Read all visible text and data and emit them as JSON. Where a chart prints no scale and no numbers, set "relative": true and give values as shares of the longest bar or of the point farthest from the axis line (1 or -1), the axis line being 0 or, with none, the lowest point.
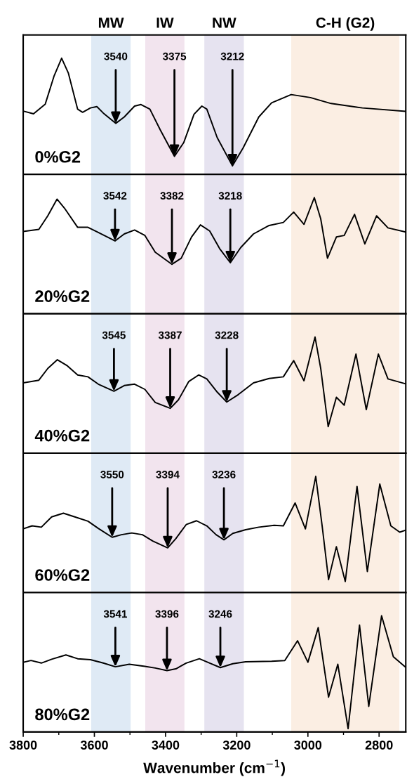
{
  "chart_data": [
    {
      "type": "line",
      "title": "0%G2",
      "relative": true,
      "tick_labels": false,
      "xlim": [
        3800,
        2725
      ],
      "color": "#000000",
      "x": [
        3800,
        3771,
        3738,
        3713,
        3692,
        3673,
        3647,
        3633,
        3611,
        3593,
        3575,
        3540,
        3516,
        3487,
        3469,
        3444,
        3415,
        3375,
        3349,
        3320,
        3298,
        3284,
        3255,
        3212,
        3182,
        3138,
        3102,
        3047,
        2993,
        2935,
        2847,
        2727
      ],
      "values": [
        0.545,
        0.521,
        0.605,
        0.849,
        1,
        0.871,
        0.561,
        0.534,
        0.572,
        0.583,
        0.528,
        0.439,
        0.494,
        0.588,
        0.601,
        0.561,
        0.384,
        0.155,
        0.273,
        0.517,
        0.588,
        0.561,
        0.317,
        0.073,
        0.228,
        0.494,
        0.616,
        0.687,
        0.661,
        0.61,
        0.572,
        0.543
      ],
      "bands": [
        {
          "axis": "x",
          "from": 3609,
          "to": 3498,
          "label": "MW",
          "color": "#dfeaf5"
        },
        {
          "axis": "x",
          "from": 3457,
          "to": 3347,
          "label": "IW",
          "color": "#f2e4ee"
        },
        {
          "axis": "x",
          "from": 3291,
          "to": 3180,
          "label": "NW",
          "color": "#e6e3f0"
        },
        {
          "axis": "x",
          "from": 3047,
          "to": 2743,
          "label": "C-H (G2)",
          "color": "#fbeee3"
        }
      ],
      "annotations": [
        {
          "text": "3540",
          "x": 3540,
          "y": 0.439
        },
        {
          "text": "3375",
          "x": 3375,
          "y": 0.155
        },
        {
          "text": "3212",
          "x": 3212,
          "y": 0.073
        }
      ]
    },
    {
      "type": "line",
      "title": "20%G2",
      "relative": true,
      "tick_labels": false,
      "xlim": [
        3800,
        2725
      ],
      "color": "#000000",
      "x": [
        3800,
        3756,
        3731,
        3705,
        3684,
        3647,
        3618,
        3589,
        3542,
        3516,
        3487,
        3458,
        3429,
        3382,
        3356,
        3327,
        3302,
        3276,
        3247,
        3218,
        3189,
        3153,
        3109,
        3069,
        3040,
        3011,
        2982,
        2964,
        2945,
        2920,
        2898,
        2869,
        2840,
        2807,
        2775,
        2727
      ],
      "values": [
        0.708,
        0.726,
        0.843,
        0.987,
        0.909,
        0.744,
        0.744,
        0.7,
        0.627,
        0.687,
        0.721,
        0.674,
        0.53,
        0.426,
        0.478,
        0.661,
        0.765,
        0.713,
        0.556,
        0.439,
        0.569,
        0.687,
        0.76,
        0.786,
        0.875,
        0.77,
        1,
        0.817,
        0.478,
        0.661,
        0.674,
        0.856,
        0.601,
        0.843,
        0.739,
        0.705
      ],
      "bands": [
        {
          "axis": "x",
          "from": 3609,
          "to": 3498,
          "color": "#dfeaf5"
        },
        {
          "axis": "x",
          "from": 3457,
          "to": 3347,
          "color": "#f2e4ee"
        },
        {
          "axis": "x",
          "from": 3291,
          "to": 3180,
          "color": "#e6e3f0"
        },
        {
          "axis": "x",
          "from": 3047,
          "to": 2743,
          "color": "#fbeee3"
        }
      ],
      "annotations": [
        {
          "text": "3542",
          "x": 3542,
          "y": 0.627
        },
        {
          "text": "3382",
          "x": 3382,
          "y": 0.426
        },
        {
          "text": "3218",
          "x": 3218,
          "y": 0.439
        }
      ]
    },
    {
      "type": "line",
      "title": "40%G2",
      "relative": true,
      "tick_labels": false,
      "xlim": [
        3800,
        2725
      ],
      "color": "#000000",
      "x": [
        3800,
        3756,
        3731,
        3704,
        3676,
        3647,
        3618,
        3589,
        3545,
        3516,
        3487,
        3458,
        3429,
        3387,
        3364,
        3335,
        3307,
        3284,
        3255,
        3228,
        3196,
        3153,
        3109,
        3069,
        3040,
        3011,
        2980,
        2964,
        2943,
        2920,
        2898,
        2865,
        2836,
        2802,
        2775,
        2727
      ],
      "values": [
        0.605,
        0.628,
        0.729,
        0.804,
        0.752,
        0.673,
        0.657,
        0.594,
        0.533,
        0.582,
        0.594,
        0.549,
        0.436,
        0.386,
        0.458,
        0.616,
        0.673,
        0.639,
        0.526,
        0.44,
        0.503,
        0.605,
        0.643,
        0.657,
        0.797,
        0.623,
        1,
        0.729,
        0.228,
        0.481,
        0.413,
        0.853,
        0.375,
        0.853,
        0.639,
        0.598
      ],
      "bands": [
        {
          "axis": "x",
          "from": 3609,
          "to": 3498,
          "color": "#dfeaf5"
        },
        {
          "axis": "x",
          "from": 3457,
          "to": 3347,
          "color": "#f2e4ee"
        },
        {
          "axis": "x",
          "from": 3291,
          "to": 3180,
          "color": "#e6e3f0"
        },
        {
          "axis": "x",
          "from": 3047,
          "to": 2743,
          "color": "#fbeee3"
        }
      ],
      "annotations": [
        {
          "text": "3545",
          "x": 3545,
          "y": 0.533
        },
        {
          "text": "3387",
          "x": 3387,
          "y": 0.386
        },
        {
          "text": "3228",
          "x": 3228,
          "y": 0.44
        }
      ]
    },
    {
      "type": "line",
      "title": "60%G2",
      "relative": true,
      "tick_labels": false,
      "xlim": [
        3800,
        2725
      ],
      "color": "#000000",
      "x": [
        3800,
        3775,
        3749,
        3720,
        3687,
        3655,
        3618,
        3589,
        3550,
        3524,
        3495,
        3465,
        3436,
        3394,
        3371,
        3342,
        3313,
        3284,
        3258,
        3236,
        3211,
        3175,
        3138,
        3095,
        3069,
        3036,
        3007,
        2978,
        2960,
        2942,
        2920,
        2895,
        2862,
        2833,
        2798,
        2767,
        2742,
        2727
      ],
      "values": [
        0.548,
        0.574,
        0.563,
        0.651,
        0.683,
        0.651,
        0.614,
        0.552,
        0.476,
        0.498,
        0.513,
        0.498,
        0.443,
        0.385,
        0.465,
        0.585,
        0.618,
        0.574,
        0.498,
        0.454,
        0.509,
        0.541,
        0.563,
        0.579,
        0.574,
        0.771,
        0.548,
        1,
        0.574,
        0.111,
        0.395,
        0.095,
        0.913,
        0.181,
        0.934,
        0.574,
        0.52,
        0.535
      ],
      "bands": [
        {
          "axis": "x",
          "from": 3609,
          "to": 3498,
          "color": "#dfeaf5"
        },
        {
          "axis": "x",
          "from": 3457,
          "to": 3347,
          "color": "#f2e4ee"
        },
        {
          "axis": "x",
          "from": 3291,
          "to": 3180,
          "color": "#e6e3f0"
        },
        {
          "axis": "x",
          "from": 3047,
          "to": 2743,
          "color": "#fbeee3"
        }
      ],
      "annotations": [
        {
          "text": "3550",
          "x": 3550,
          "y": 0.476
        },
        {
          "text": "3394",
          "x": 3394,
          "y": 0.385
        },
        {
          "text": "3236",
          "x": 3236,
          "y": 0.454
        }
      ]
    },
    {
      "type": "line",
      "title": "80%G2",
      "relative": true,
      "tick_labels": "x",
      "xlim": [
        3800,
        2725
      ],
      "xlabel": "Wavenumber (cm$^{−1}$)",
      "color": "#000000",
      "xticks": [
        3800,
        {
          "value": 3700,
          "label": null
        },
        3600,
        {
          "value": 3500,
          "label": null
        },
        3400,
        {
          "value": 3300,
          "label": null
        },
        3200,
        {
          "value": 3100,
          "label": null
        },
        3000,
        {
          "value": 2900,
          "label": null
        },
        2800
      ],
      "x": [
        3800,
        3778,
        3749,
        3720,
        3680,
        3647,
        3611,
        3575,
        3541,
        3502,
        3458,
        3429,
        3396,
        3371,
        3342,
        3305,
        3276,
        3246,
        3211,
        3175,
        3102,
        3065,
        3029,
        3000,
        2971,
        2942,
        2916,
        2887,
        2855,
        2829,
        2793,
        2760,
        2727
      ],
      "values": [
        0.6,
        0.615,
        0.593,
        0.626,
        0.663,
        0.63,
        0.622,
        0.593,
        0.561,
        0.583,
        0.565,
        0.55,
        0.528,
        0.543,
        0.593,
        0.63,
        0.593,
        0.554,
        0.587,
        0.604,
        0.609,
        0.615,
        0.785,
        0.6,
        0.898,
        0.3,
        0.583,
        0.028,
        0.92,
        0.22,
        1,
        0.648,
        0.561
      ],
      "bands": [
        {
          "axis": "x",
          "from": 3609,
          "to": 3498,
          "color": "#dfeaf5"
        },
        {
          "axis": "x",
          "from": 3457,
          "to": 3347,
          "color": "#f2e4ee"
        },
        {
          "axis": "x",
          "from": 3291,
          "to": 3180,
          "color": "#e6e3f0"
        },
        {
          "axis": "x",
          "from": 3047,
          "to": 2743,
          "color": "#fbeee3"
        }
      ],
      "annotations": [
        {
          "text": "3541",
          "x": 3541,
          "y": 0.561
        },
        {
          "text": "3396",
          "x": 3396,
          "y": 0.528
        },
        {
          "text": "3246",
          "x": 3246,
          "y": 0.554
        }
      ]
    }
  ]
}
